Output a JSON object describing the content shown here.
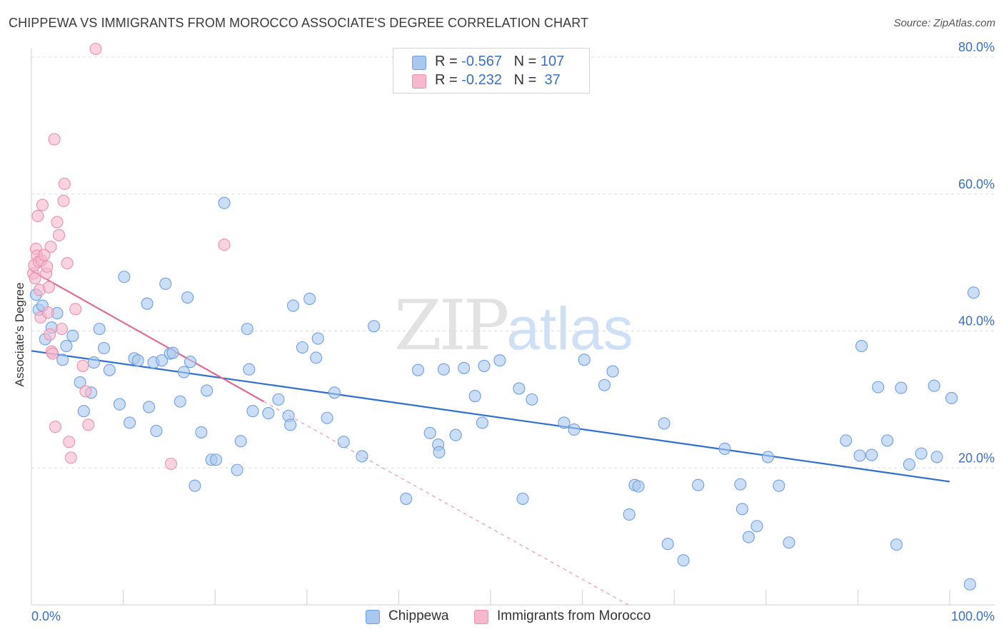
{
  "header": {
    "title": "CHIPPEWA VS IMMIGRANTS FROM MOROCCO ASSOCIATE'S DEGREE CORRELATION CHART",
    "source": "Source: ZipAtlas.com"
  },
  "watermark": {
    "zip": "ZIP",
    "atlas": "atlas"
  },
  "legend": {
    "rows": [
      {
        "r_label": "R = ",
        "r_value": "-0.567",
        "n_label": "N = ",
        "n_value": "107",
        "color": "#aac8ef"
      },
      {
        "r_label": "R = ",
        "r_value": "-0.232",
        "n_label": "N = ",
        "n_value": " 37",
        "color": "#f5b8cc"
      }
    ]
  },
  "bottom_legend": {
    "items": [
      {
        "label": "Chippewa",
        "color": "#aac8ef"
      },
      {
        "label": "Immigrants from Morocco",
        "color": "#f5b8cc"
      }
    ]
  },
  "chart_data": {
    "type": "scatter",
    "title": "CHIPPEWA VS IMMIGRANTS FROM MOROCCO ASSOCIATE'S DEGREE CORRELATION CHART",
    "xlabel": "",
    "ylabel": "Associate's Degree",
    "xlim": [
      0,
      100
    ],
    "ylim": [
      0,
      80
    ],
    "x_tick_labels": [
      "0.0%",
      "100.0%"
    ],
    "y_ticks": [
      20,
      40,
      60,
      80
    ],
    "y_tick_labels": [
      "20.0%",
      "40.0%",
      "60.0%",
      "80.0%"
    ],
    "grid": true,
    "legend_position": "top-center",
    "series": [
      {
        "name": "Chippewa",
        "color": "#aac8ef",
        "stroke": "#6f9fe0",
        "trend": {
          "x": [
            0,
            100
          ],
          "y": [
            37.1,
            18.0
          ],
          "color": "#2f6fd0"
        },
        "points": [
          [
            0.5,
            45.3
          ],
          [
            0.8,
            43.1
          ],
          [
            1.2,
            43.7
          ],
          [
            1.5,
            38.8
          ],
          [
            2.2,
            40.5
          ],
          [
            2.8,
            42.6
          ],
          [
            3.4,
            35.8
          ],
          [
            3.8,
            37.8
          ],
          [
            4.5,
            39.3
          ],
          [
            5.3,
            32.5
          ],
          [
            5.7,
            28.3
          ],
          [
            6.5,
            31.0
          ],
          [
            6.8,
            35.4
          ],
          [
            7.4,
            40.3
          ],
          [
            7.9,
            37.5
          ],
          [
            8.5,
            34.3
          ],
          [
            9.6,
            29.3
          ],
          [
            10.1,
            47.9
          ],
          [
            10.7,
            26.6
          ],
          [
            11.2,
            36.0
          ],
          [
            11.6,
            35.7
          ],
          [
            12.6,
            44.0
          ],
          [
            12.8,
            28.9
          ],
          [
            13.3,
            35.4
          ],
          [
            13.6,
            25.4
          ],
          [
            14.2,
            35.7
          ],
          [
            14.6,
            46.9
          ],
          [
            15.1,
            36.7
          ],
          [
            15.4,
            36.8
          ],
          [
            16.2,
            29.7
          ],
          [
            16.6,
            34.0
          ],
          [
            17.0,
            44.9
          ],
          [
            17.3,
            35.5
          ],
          [
            17.8,
            17.4
          ],
          [
            18.5,
            25.2
          ],
          [
            19.1,
            31.3
          ],
          [
            19.6,
            21.2
          ],
          [
            20.1,
            21.2
          ],
          [
            21.0,
            58.7
          ],
          [
            22.4,
            19.7
          ],
          [
            22.8,
            23.9
          ],
          [
            23.5,
            40.3
          ],
          [
            23.7,
            34.4
          ],
          [
            24.1,
            28.3
          ],
          [
            25.8,
            28.0
          ],
          [
            26.9,
            30.0
          ],
          [
            28.0,
            27.6
          ],
          [
            28.2,
            26.3
          ],
          [
            28.5,
            43.7
          ],
          [
            29.5,
            37.6
          ],
          [
            30.3,
            44.7
          ],
          [
            31.0,
            36.1
          ],
          [
            31.2,
            38.9
          ],
          [
            32.2,
            27.3
          ],
          [
            33.0,
            31.0
          ],
          [
            34.0,
            23.8
          ],
          [
            36.0,
            21.7
          ],
          [
            37.3,
            40.7
          ],
          [
            40.8,
            15.5
          ],
          [
            42.1,
            34.3
          ],
          [
            43.4,
            25.1
          ],
          [
            44.3,
            23.4
          ],
          [
            44.4,
            22.3
          ],
          [
            44.9,
            34.4
          ],
          [
            46.2,
            24.8
          ],
          [
            47.1,
            34.6
          ],
          [
            48.3,
            30.5
          ],
          [
            49.1,
            26.6
          ],
          [
            49.3,
            34.9
          ],
          [
            51.0,
            35.7
          ],
          [
            53.1,
            31.6
          ],
          [
            53.5,
            15.5
          ],
          [
            54.5,
            30.0
          ],
          [
            58.0,
            26.6
          ],
          [
            59.1,
            25.6
          ],
          [
            60.2,
            35.8
          ],
          [
            62.4,
            32.1
          ],
          [
            63.3,
            34.1
          ],
          [
            65.1,
            13.2
          ],
          [
            65.7,
            17.5
          ],
          [
            66.1,
            17.3
          ],
          [
            68.9,
            26.5
          ],
          [
            69.3,
            8.9
          ],
          [
            71.0,
            6.5
          ],
          [
            72.6,
            17.5
          ],
          [
            75.5,
            22.8
          ],
          [
            77.2,
            17.6
          ],
          [
            77.4,
            14.0
          ],
          [
            78.1,
            9.9
          ],
          [
            79.0,
            11.5
          ],
          [
            80.2,
            21.6
          ],
          [
            81.4,
            17.4
          ],
          [
            82.5,
            9.1
          ],
          [
            88.7,
            24.0
          ],
          [
            90.2,
            21.8
          ],
          [
            90.4,
            37.8
          ],
          [
            91.5,
            21.9
          ],
          [
            92.2,
            31.8
          ],
          [
            93.2,
            24.0
          ],
          [
            94.2,
            8.8
          ],
          [
            94.7,
            31.7
          ],
          [
            95.6,
            20.5
          ],
          [
            96.9,
            22.1
          ],
          [
            98.3,
            32.0
          ],
          [
            98.6,
            21.6
          ],
          [
            100.2,
            30.2
          ],
          [
            102.2,
            3.0
          ],
          [
            102.6,
            45.6
          ]
        ]
      },
      {
        "name": "Immigrants from Morocco",
        "color": "#f5b8cc",
        "stroke": "#eb8fac",
        "trend": {
          "x": [
            0,
            25.3
          ],
          "y": [
            48.8,
            29.7
          ],
          "color": "#e06b94"
        },
        "trend_extension": {
          "x": [
            25.3,
            65.0
          ],
          "y": [
            29.7,
            0.0
          ],
          "color": "#e79ab5"
        },
        "points": [
          [
            0.2,
            48.4
          ],
          [
            0.3,
            49.6
          ],
          [
            0.4,
            47.7
          ],
          [
            0.5,
            52.0
          ],
          [
            0.6,
            51.0
          ],
          [
            0.7,
            56.8
          ],
          [
            0.8,
            50.1
          ],
          [
            0.9,
            46.0
          ],
          [
            1.0,
            42.0
          ],
          [
            1.1,
            50.3
          ],
          [
            1.2,
            58.4
          ],
          [
            1.4,
            51.1
          ],
          [
            1.6,
            48.4
          ],
          [
            1.7,
            49.4
          ],
          [
            1.8,
            42.7
          ],
          [
            1.9,
            46.4
          ],
          [
            2.0,
            39.5
          ],
          [
            2.1,
            52.3
          ],
          [
            2.2,
            37.0
          ],
          [
            2.3,
            36.7
          ],
          [
            2.5,
            68.0
          ],
          [
            2.6,
            26.0
          ],
          [
            2.8,
            55.9
          ],
          [
            3.0,
            54.0
          ],
          [
            3.3,
            40.3
          ],
          [
            3.5,
            59.0
          ],
          [
            3.6,
            61.5
          ],
          [
            3.9,
            49.9
          ],
          [
            4.1,
            23.8
          ],
          [
            4.3,
            21.5
          ],
          [
            4.8,
            43.2
          ],
          [
            5.6,
            34.9
          ],
          [
            5.9,
            31.2
          ],
          [
            6.2,
            26.3
          ],
          [
            7.0,
            81.2
          ],
          [
            15.2,
            20.6
          ],
          [
            21.0,
            52.6
          ]
        ]
      }
    ]
  }
}
